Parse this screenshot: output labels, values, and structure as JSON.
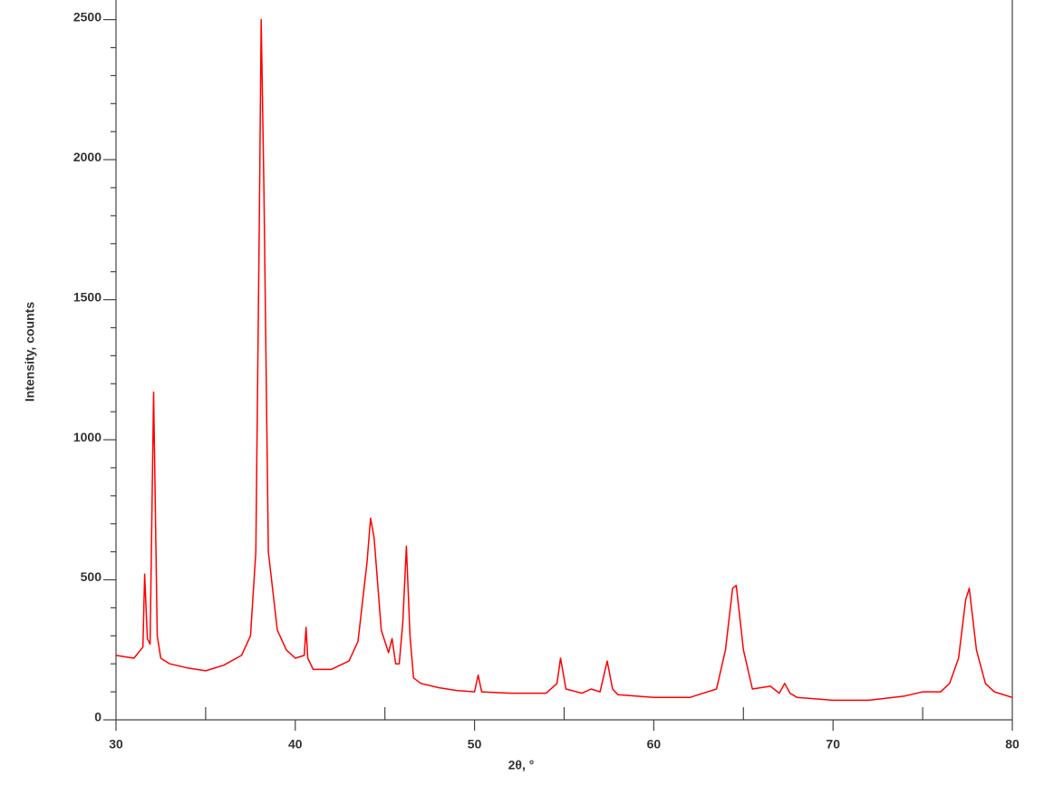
{
  "chart_data": {
    "type": "line",
    "x_label": "2θ, °",
    "y_label": "Intensity, counts",
    "xlim": [
      30,
      80
    ],
    "ylim": [
      0,
      2570
    ],
    "xticks": [
      30,
      40,
      50,
      60,
      70,
      80
    ],
    "xminorticks": [
      35,
      45,
      55,
      65,
      75
    ],
    "yticks": [
      0,
      500,
      1000,
      1500,
      2000,
      2500
    ],
    "yminorticks": [
      100,
      200,
      300,
      400,
      600,
      700,
      800,
      900,
      1100,
      1200,
      1300,
      1400,
      1600,
      1700,
      1800,
      1900,
      2100,
      2200,
      2300,
      2400
    ],
    "color": "#ff0000",
    "x": [
      30,
      31,
      31.5,
      31.6,
      31.75,
      31.9,
      32.1,
      32.3,
      32.5,
      33,
      34,
      35,
      36,
      37,
      37.5,
      37.8,
      38.0,
      38.1,
      38.25,
      38.5,
      39,
      39.5,
      40,
      40.5,
      40.6,
      40.7,
      41,
      42,
      43,
      43.5,
      44,
      44.2,
      44.4,
      44.8,
      45.2,
      45.4,
      45.6,
      45.8,
      46.0,
      46.2,
      46.4,
      46.6,
      47,
      48,
      49,
      50,
      50.2,
      50.4,
      52,
      54,
      54.6,
      54.8,
      55.1,
      56,
      56.5,
      57,
      57.4,
      57.7,
      58,
      60,
      62,
      63.5,
      64.0,
      64.4,
      64.6,
      65.0,
      65.5,
      66.5,
      67,
      67.3,
      67.6,
      68,
      70,
      72,
      74,
      75,
      76,
      76.5,
      77,
      77.4,
      77.6,
      78,
      78.5,
      79,
      80
    ],
    "values": [
      230,
      220,
      260,
      520,
      290,
      270,
      1170,
      300,
      220,
      200,
      185,
      175,
      195,
      230,
      300,
      600,
      1800,
      2500,
      1900,
      600,
      320,
      250,
      220,
      230,
      330,
      220,
      180,
      180,
      210,
      280,
      560,
      720,
      650,
      320,
      240,
      290,
      200,
      200,
      350,
      620,
      300,
      150,
      130,
      115,
      105,
      100,
      160,
      100,
      95,
      95,
      130,
      220,
      110,
      95,
      110,
      100,
      210,
      110,
      90,
      80,
      80,
      110,
      250,
      470,
      480,
      250,
      110,
      120,
      95,
      130,
      95,
      80,
      70,
      70,
      85,
      100,
      100,
      130,
      220,
      430,
      470,
      250,
      130,
      100,
      80
    ]
  }
}
